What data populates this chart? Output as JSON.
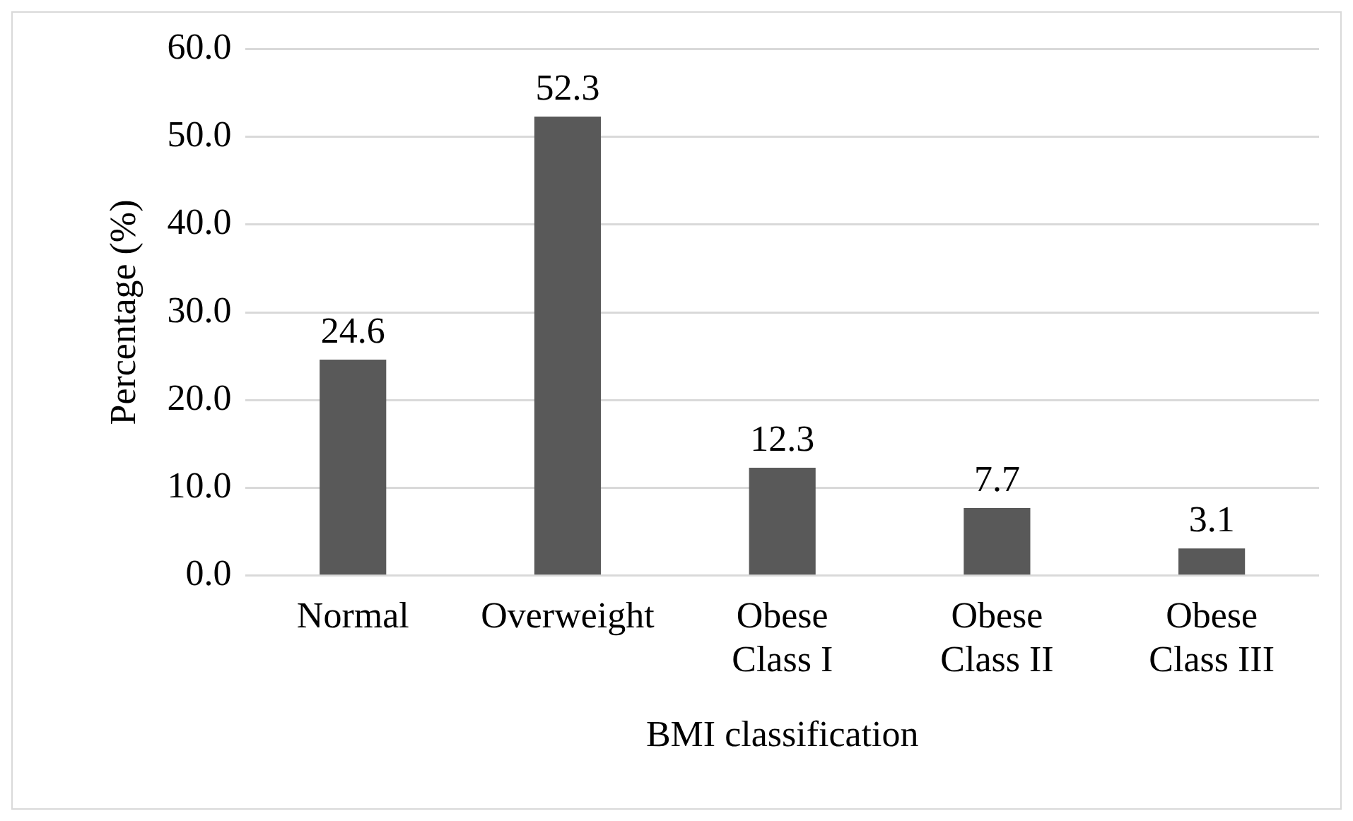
{
  "chart_data": {
    "type": "bar",
    "xlabel": "BMI classification",
    "ylabel": "Percentage (%)",
    "categories": [
      "Normal",
      "Overweight",
      "Obese Class I",
      "Obese Class II",
      "Obese Class III"
    ],
    "values": [
      24.6,
      52.3,
      12.3,
      7.7,
      3.1
    ],
    "color": "#595959",
    "ylim": [
      0,
      60
    ],
    "yticks": [
      {
        "value": 0,
        "label": "0.0"
      },
      {
        "value": 10,
        "label": "10.0"
      },
      {
        "value": 20,
        "label": "20.0"
      },
      {
        "value": 30,
        "label": "30.0"
      },
      {
        "value": 40,
        "label": "40.0"
      },
      {
        "value": 50,
        "label": "50.0"
      },
      {
        "value": 60,
        "label": "60.0"
      }
    ],
    "grid": "y",
    "data_labels": true
  }
}
